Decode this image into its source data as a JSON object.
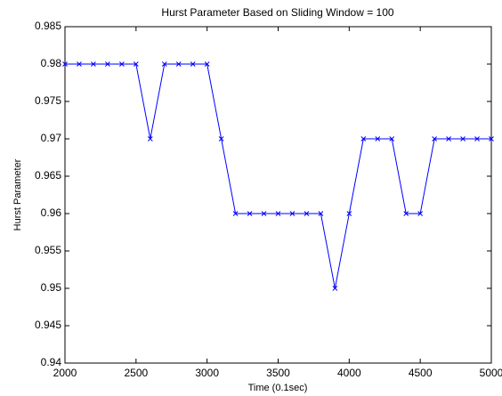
{
  "chart_data": {
    "type": "line",
    "title": "Hurst Parameter Based on Sliding Window = 100",
    "x_label": "Time  (0.1sec)",
    "y_label": "Hurst Parameter",
    "x": [
      2000,
      2100,
      2200,
      2300,
      2400,
      2500,
      2600,
      2700,
      2800,
      2900,
      3000,
      3100,
      3200,
      3300,
      3400,
      3500,
      3600,
      3700,
      3800,
      3900,
      4000,
      4100,
      4200,
      4300,
      4400,
      4500,
      4600,
      4700,
      4800,
      4900,
      5000
    ],
    "values": [
      0.98,
      0.98,
      0.98,
      0.98,
      0.98,
      0.98,
      0.97,
      0.98,
      0.98,
      0.98,
      0.98,
      0.97,
      0.96,
      0.96,
      0.96,
      0.96,
      0.96,
      0.96,
      0.96,
      0.95,
      0.96,
      0.97,
      0.97,
      0.97,
      0.96,
      0.96,
      0.97,
      0.97,
      0.97,
      0.97,
      0.97
    ],
    "color": "#0000ff",
    "marker": "x",
    "xlim": [
      2000,
      5000
    ],
    "xticks": [
      2000,
      2500,
      3000,
      3500,
      4000,
      4500,
      5000
    ],
    "ylim": [
      0.94,
      0.985
    ],
    "yticks": [
      0.94,
      0.945,
      0.95,
      0.955,
      0.96,
      0.965,
      0.97,
      0.975,
      0.98,
      0.985
    ],
    "grid": false
  }
}
